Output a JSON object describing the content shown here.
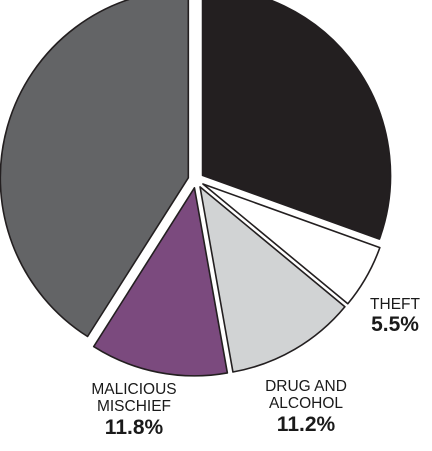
{
  "chart_data": {
    "type": "pie",
    "title": "",
    "slices": [
      {
        "label": "",
        "value": 30.5,
        "color": "#231f20"
      },
      {
        "label": "THEFT",
        "value": 5.5,
        "display_value": "5.5%",
        "color": "#ffffff"
      },
      {
        "label": "DRUG AND\nALCOHOL",
        "value": 11.2,
        "display_value": "11.2%",
        "color": "#d1d3d4"
      },
      {
        "label": "MALICIOUS\nMISCHIEF",
        "value": 11.8,
        "display_value": "11.8%",
        "color": "#7b4a7e"
      },
      {
        "label": "",
        "value": 41.0,
        "color": "#636466"
      }
    ],
    "legend": "none",
    "start_angle_deg": 0,
    "direction": "clockwise"
  }
}
